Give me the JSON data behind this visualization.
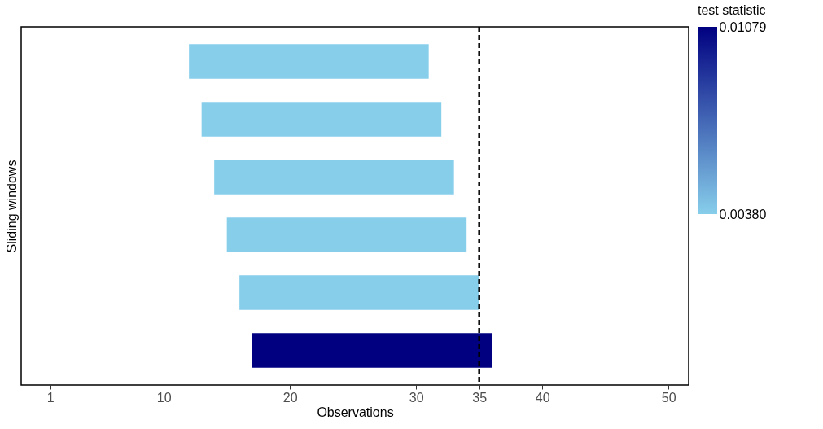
{
  "chart_data": {
    "type": "bar",
    "orientation": "horizontal",
    "xlabel": "Observations",
    "ylabel": "Sliding windows",
    "categories": [
      null,
      null,
      null,
      null,
      null,
      null
    ],
    "base": [
      12,
      13,
      14,
      15,
      16,
      17
    ],
    "values": [
      19,
      19,
      19,
      19,
      19,
      19
    ],
    "cvalues": [
      0.0038,
      0.0038,
      0.0038,
      0.0038,
      0.0038,
      0.01079
    ],
    "colors": [
      "#87ceeb",
      "#87ceeb",
      "#87ceeb",
      "#87ceeb",
      "#87ceeb",
      "#000080"
    ],
    "clabel": "test statistic",
    "clim": [
      0.0038,
      0.01079
    ],
    "cticks": [
      {
        "value": 0.0038,
        "label": "0.00380"
      },
      0.01079
    ],
    "xlim": [
      -1.3,
      51.6
    ],
    "xticks": [
      1,
      10,
      20,
      30,
      35,
      40,
      50
    ],
    "ref_lines": [
      {
        "axis": "x",
        "value": 35,
        "color": "#000000",
        "line_style": "dashed"
      }
    ],
    "tick_labels": "x",
    "grid": false
  }
}
